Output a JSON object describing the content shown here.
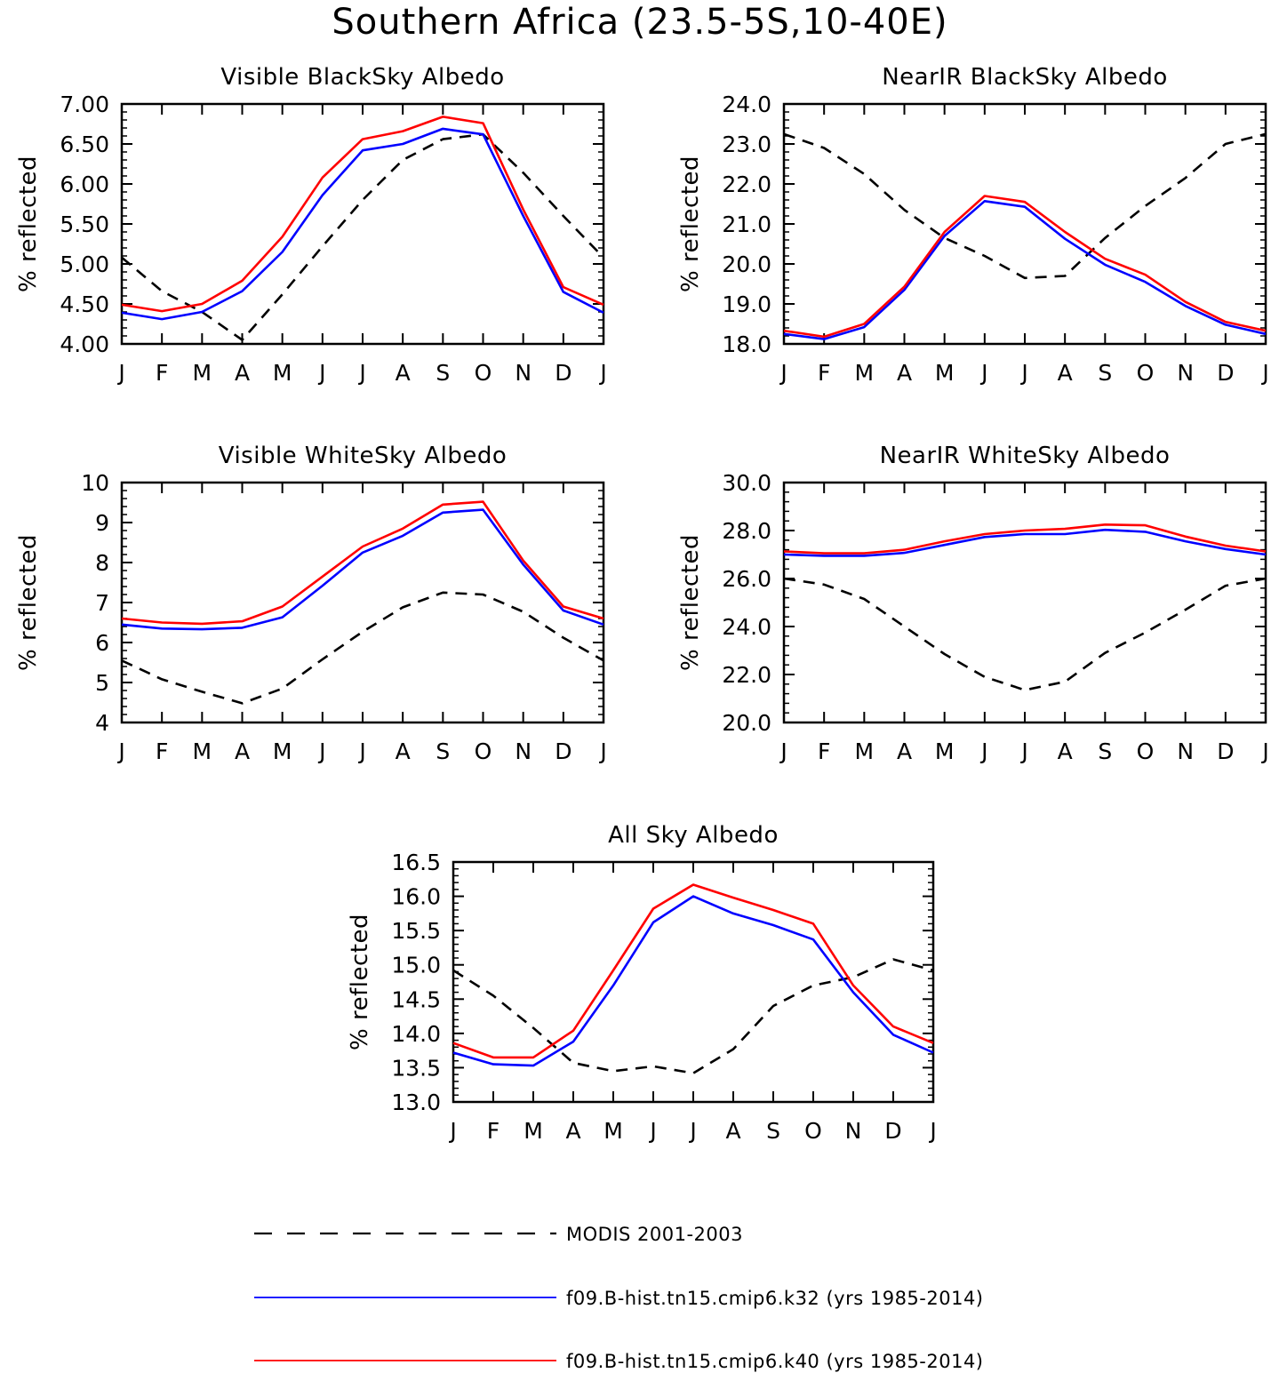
{
  "title": "Southern Africa (23.5-5S,10-40E)",
  "months": [
    "J",
    "F",
    "M",
    "A",
    "M",
    "J",
    "J",
    "A",
    "S",
    "O",
    "N",
    "D",
    "J"
  ],
  "colors": {
    "modis": "#000000",
    "k32": "#0000ff",
    "k40": "#ff0000"
  },
  "legend": [
    {
      "key": "modis",
      "label": "MODIS 2001-2003",
      "style": "dashed",
      "color": "#000000"
    },
    {
      "key": "k32",
      "label": "f09.B-hist.tn15.cmip6.k32 (yrs 1985-2014)",
      "style": "solid",
      "color": "#0000ff"
    },
    {
      "key": "k40",
      "label": "f09.B-hist.tn15.cmip6.k40 (yrs 1985-2014)",
      "style": "solid",
      "color": "#ff0000"
    }
  ],
  "chart_data": [
    {
      "type": "line",
      "title": "Visible BlackSky Albedo",
      "ylabel": "% reflected",
      "ylim": [
        4.0,
        7.0
      ],
      "yticks": [
        "4.00",
        "4.50",
        "5.00",
        "5.50",
        "6.00",
        "6.50",
        "7.00"
      ],
      "categories": [
        "J",
        "F",
        "M",
        "A",
        "M",
        "J",
        "J",
        "A",
        "S",
        "O",
        "N",
        "D",
        "J"
      ],
      "series": [
        {
          "key": "modis",
          "values": [
            5.08,
            4.66,
            4.4,
            4.05,
            4.62,
            5.22,
            5.8,
            6.3,
            6.56,
            6.62,
            6.14,
            5.6,
            5.08
          ]
        },
        {
          "key": "k32",
          "values": [
            4.39,
            4.31,
            4.4,
            4.66,
            5.15,
            5.86,
            6.42,
            6.5,
            6.69,
            6.62,
            5.6,
            4.65,
            4.39
          ]
        },
        {
          "key": "k40",
          "values": [
            4.49,
            4.41,
            4.5,
            4.79,
            5.34,
            6.08,
            6.56,
            6.66,
            6.84,
            6.76,
            5.68,
            4.71,
            4.49
          ]
        }
      ]
    },
    {
      "type": "line",
      "title": "NearIR BlackSky Albedo",
      "ylabel": "% reflected",
      "ylim": [
        18.0,
        24.0
      ],
      "yticks": [
        "18.0",
        "19.0",
        "20.0",
        "21.0",
        "22.0",
        "23.0",
        "24.0"
      ],
      "categories": [
        "J",
        "F",
        "M",
        "A",
        "M",
        "J",
        "J",
        "A",
        "S",
        "O",
        "N",
        "D",
        "J"
      ],
      "series": [
        {
          "key": "modis",
          "values": [
            23.25,
            22.9,
            22.25,
            21.35,
            20.65,
            20.2,
            19.65,
            19.7,
            20.65,
            21.45,
            22.15,
            23.0,
            23.25
          ]
        },
        {
          "key": "k32",
          "values": [
            18.25,
            18.12,
            18.42,
            19.35,
            20.7,
            21.57,
            21.43,
            20.63,
            19.98,
            19.55,
            18.95,
            18.48,
            18.25
          ]
        },
        {
          "key": "k40",
          "values": [
            18.33,
            18.18,
            18.5,
            19.43,
            20.8,
            21.7,
            21.55,
            20.8,
            20.13,
            19.73,
            19.05,
            18.55,
            18.33
          ]
        }
      ]
    },
    {
      "type": "line",
      "title": "Visible WhiteSky Albedo",
      "ylabel": "% reflected",
      "ylim": [
        4,
        10
      ],
      "yticks": [
        "4",
        "5",
        "6",
        "7",
        "8",
        "9",
        "10"
      ],
      "categories": [
        "J",
        "F",
        "M",
        "A",
        "M",
        "J",
        "J",
        "A",
        "S",
        "O",
        "N",
        "D",
        "J"
      ],
      "series": [
        {
          "key": "modis",
          "values": [
            5.55,
            5.08,
            4.77,
            4.48,
            4.85,
            5.58,
            6.27,
            6.88,
            7.25,
            7.2,
            6.77,
            6.12,
            5.55
          ]
        },
        {
          "key": "k32",
          "values": [
            6.45,
            6.35,
            6.33,
            6.37,
            6.63,
            7.42,
            8.25,
            8.67,
            9.25,
            9.32,
            7.95,
            6.8,
            6.45
          ]
        },
        {
          "key": "k40",
          "values": [
            6.6,
            6.5,
            6.47,
            6.53,
            6.9,
            7.65,
            8.4,
            8.85,
            9.45,
            9.52,
            8.05,
            6.9,
            6.6
          ]
        }
      ]
    },
    {
      "type": "line",
      "title": "NearIR WhiteSky Albedo",
      "ylabel": "% reflected",
      "ylim": [
        20.0,
        30.0
      ],
      "yticks": [
        "20.0",
        "22.0",
        "24.0",
        "26.0",
        "28.0",
        "30.0"
      ],
      "categories": [
        "J",
        "F",
        "M",
        "A",
        "M",
        "J",
        "J",
        "A",
        "S",
        "O",
        "N",
        "D",
        "J"
      ],
      "series": [
        {
          "key": "modis",
          "values": [
            26.0,
            25.75,
            25.15,
            24.0,
            22.85,
            21.9,
            21.35,
            21.7,
            22.9,
            23.75,
            24.7,
            25.7,
            26.0
          ]
        },
        {
          "key": "k32",
          "values": [
            27.0,
            26.95,
            26.95,
            27.07,
            27.4,
            27.73,
            27.85,
            27.85,
            28.03,
            27.95,
            27.55,
            27.23,
            27.0
          ]
        },
        {
          "key": "k40",
          "values": [
            27.13,
            27.05,
            27.05,
            27.2,
            27.55,
            27.85,
            28.0,
            28.07,
            28.25,
            28.22,
            27.75,
            27.37,
            27.13
          ]
        }
      ]
    },
    {
      "type": "line",
      "title": "All Sky Albedo",
      "ylabel": "% reflected",
      "ylim": [
        13.0,
        16.5
      ],
      "yticks": [
        "13.0",
        "13.5",
        "14.0",
        "14.5",
        "15.0",
        "15.5",
        "16.0",
        "16.5"
      ],
      "categories": [
        "J",
        "F",
        "M",
        "A",
        "M",
        "J",
        "J",
        "A",
        "S",
        "O",
        "N",
        "D",
        "J"
      ],
      "series": [
        {
          "key": "modis",
          "values": [
            14.92,
            14.55,
            14.08,
            13.57,
            13.45,
            13.52,
            13.42,
            13.77,
            14.4,
            14.7,
            14.82,
            15.08,
            14.92
          ]
        },
        {
          "key": "k32",
          "values": [
            13.72,
            13.55,
            13.53,
            13.88,
            14.7,
            15.62,
            16.0,
            15.75,
            15.58,
            15.37,
            14.6,
            13.98,
            13.72
          ]
        },
        {
          "key": "k40",
          "values": [
            13.86,
            13.65,
            13.65,
            14.04,
            14.92,
            15.82,
            16.17,
            15.98,
            15.8,
            15.6,
            14.7,
            14.1,
            13.86
          ]
        }
      ]
    }
  ]
}
